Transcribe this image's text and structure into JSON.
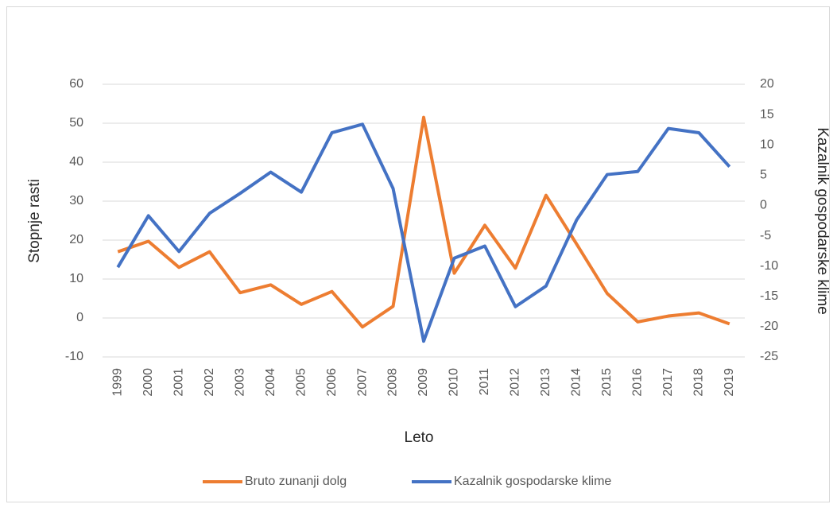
{
  "chart_data": {
    "type": "line",
    "x_label": "Leto",
    "y_label": "Stopnje rasti",
    "y2_label": "Kazalnik gospodarske klime",
    "categories": [
      "1999",
      "2000",
      "2001",
      "2002",
      "2003",
      "2004",
      "2005",
      "2006",
      "2007",
      "2008",
      "2009",
      "2010",
      "2011",
      "2012",
      "2013",
      "2014",
      "2015",
      "2016",
      "2017",
      "2018",
      "2019"
    ],
    "series": [
      {
        "name": "Bruto zunanji dolg",
        "color": "#ed7d31",
        "values": [
          17,
          19.7,
          13,
          17,
          6.5,
          8.5,
          3.5,
          6.8,
          -2.3,
          3,
          51.5,
          11.5,
          23.8,
          12.8,
          31.5,
          19,
          6.3,
          -1,
          0.5,
          1.3,
          -1.5
        ]
      },
      {
        "name": "Kazalnik gospodarske klime",
        "color": "#4472c4",
        "axis": "y2",
        "values": [
          -10.2,
          -1.7,
          -7.6,
          -1.3,
          2,
          5.5,
          2.2,
          12,
          13.4,
          2.8,
          -22.4,
          -8.7,
          -6.7,
          -16.7,
          -13.3,
          -2.4,
          5.1,
          5.6,
          12.7,
          12,
          6.4
        ]
      }
    ],
    "ylim": [
      -10,
      60
    ],
    "yticks": [
      -10,
      0,
      10,
      20,
      30,
      40,
      50,
      60
    ],
    "y2lim": [
      -25,
      20
    ],
    "y2ticks": [
      -25,
      -20,
      -15,
      -10,
      -5,
      0,
      5,
      10,
      15,
      20
    ],
    "grid": true,
    "legend": "bottom"
  }
}
